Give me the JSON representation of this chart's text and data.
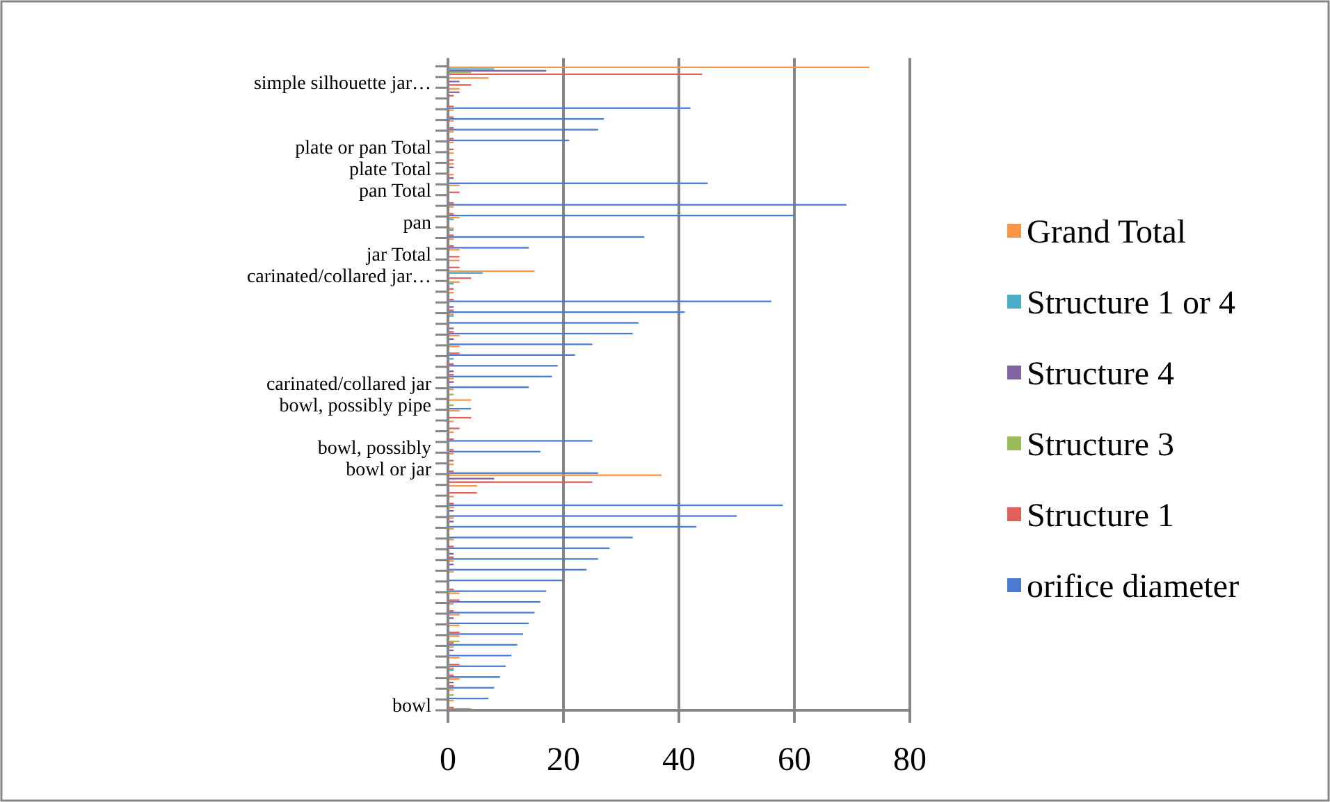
{
  "chart_data": {
    "type": "bar",
    "orientation": "horizontal",
    "categories": [
      null,
      "simple silhouette jar…",
      null,
      null,
      null,
      null,
      null,
      "plate or pan Total",
      null,
      "plate Total",
      null,
      "pan Total",
      null,
      null,
      "pan",
      null,
      null,
      "jar Total",
      null,
      "carinated/collared jar…",
      null,
      null,
      null,
      null,
      null,
      null,
      null,
      null,
      null,
      "carinated/collared jar",
      null,
      "bowl, possibly pipe",
      null,
      null,
      null,
      "bowl, possibly",
      null,
      "bowl or jar",
      null,
      null,
      null,
      null,
      null,
      null,
      null,
      null,
      null,
      null,
      null,
      null,
      null,
      null,
      null,
      null,
      null,
      null,
      null,
      null,
      null,
      "bowl"
    ],
    "series": [
      {
        "name": "orifice diameter",
        "color": "#4a7bd0",
        "values": [
          null,
          null,
          null,
          42,
          27,
          26,
          21,
          null,
          null,
          null,
          45,
          null,
          69,
          60,
          null,
          34,
          14,
          null,
          null,
          null,
          null,
          56,
          41,
          33,
          32,
          25,
          22,
          19,
          18,
          14,
          null,
          4,
          null,
          null,
          25,
          16,
          null,
          26,
          null,
          null,
          58,
          50,
          43,
          32,
          28,
          26,
          24,
          20,
          17,
          16,
          15,
          14,
          13,
          12,
          11,
          10,
          9,
          8,
          7,
          4
        ]
      },
      {
        "name": "Structure 1",
        "color": "#e0605c",
        "values": [
          44,
          4,
          1,
          1,
          1,
          1,
          1,
          1,
          1,
          null,
          null,
          2,
          1,
          1,
          null,
          1,
          1,
          2,
          2,
          4,
          1,
          1,
          1,
          null,
          1,
          null,
          2,
          1,
          1,
          null,
          null,
          null,
          4,
          2,
          1,
          1,
          1,
          1,
          25,
          5,
          1,
          null,
          null,
          null,
          1,
          1,
          null,
          null,
          1,
          2,
          1,
          null,
          2,
          1,
          null,
          2,
          1,
          1,
          null,
          1
        ]
      },
      {
        "name": "Structure 3",
        "color": "#9bbb59",
        "values": [
          4,
          null,
          null,
          null,
          null,
          null,
          null,
          null,
          null,
          null,
          null,
          null,
          null,
          null,
          null,
          null,
          null,
          null,
          null,
          null,
          null,
          null,
          null,
          null,
          null,
          null,
          null,
          null,
          null,
          null,
          1,
          1,
          null,
          null,
          null,
          null,
          null,
          null,
          null,
          null,
          null,
          null,
          null,
          null,
          null,
          null,
          null,
          null,
          null,
          null,
          null,
          null,
          null,
          2,
          null,
          null,
          null,
          null,
          1,
          null
        ]
      },
      {
        "name": "Structure 4",
        "color": "#8064a2",
        "values": [
          17,
          2,
          2,
          null,
          null,
          null,
          null,
          null,
          null,
          1,
          1,
          null,
          null,
          null,
          null,
          null,
          null,
          null,
          null,
          null,
          null,
          null,
          1,
          null,
          1,
          1,
          null,
          null,
          1,
          1,
          null,
          null,
          null,
          null,
          null,
          null,
          null,
          null,
          8,
          null,
          null,
          1,
          1,
          null,
          null,
          1,
          1,
          null,
          null,
          null,
          null,
          1,
          null,
          null,
          1,
          null,
          null,
          1,
          null,
          null
        ]
      },
      {
        "name": "Structure 1 or 4",
        "color": "#4bacc6",
        "values": [
          8,
          null,
          null,
          null,
          null,
          null,
          null,
          null,
          null,
          null,
          null,
          null,
          null,
          null,
          1,
          1,
          null,
          null,
          null,
          6,
          1,
          null,
          null,
          1,
          null,
          null,
          null,
          1,
          null,
          null,
          null,
          null,
          null,
          null,
          null,
          null,
          null,
          null,
          null,
          null,
          null,
          null,
          null,
          null,
          null,
          null,
          null,
          null,
          null,
          null,
          null,
          null,
          null,
          null,
          null,
          null,
          1,
          null,
          null,
          null
        ]
      },
      {
        "name": "Grand Total",
        "color": "#f79646",
        "values": [
          73,
          7,
          2,
          null,
          1,
          1,
          1,
          1,
          1,
          1,
          1,
          2,
          null,
          1,
          2,
          1,
          1,
          2,
          2,
          15,
          2,
          1,
          null,
          1,
          null,
          2,
          2,
          null,
          null,
          1,
          1,
          4,
          2,
          1,
          1,
          null,
          1,
          1,
          37,
          5,
          1,
          1,
          1,
          1,
          1,
          null,
          1,
          1,
          null,
          2,
          1,
          2,
          2,
          2,
          1,
          2,
          1,
          2,
          1,
          1
        ]
      }
    ],
    "xlim": [
      0,
      80
    ],
    "xticks": [
      0,
      20,
      40,
      60,
      80
    ],
    "grid": "x",
    "legend": "right"
  }
}
